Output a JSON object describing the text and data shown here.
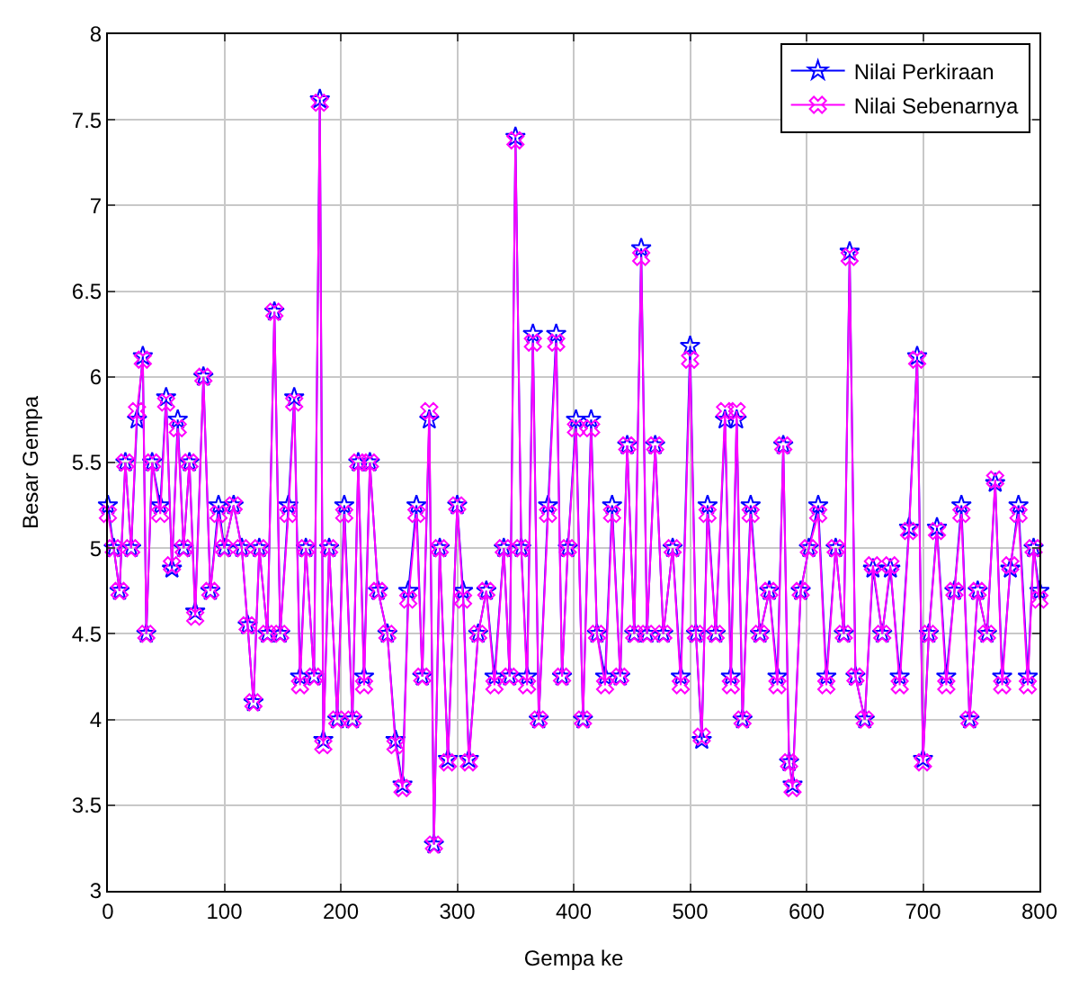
{
  "chart_data": {
    "type": "line",
    "xlabel": "Gempa ke",
    "ylabel": "Besar Gempa",
    "xlim": [
      0,
      800
    ],
    "xticks": [
      0,
      100,
      200,
      300,
      400,
      500,
      600,
      700,
      800
    ],
    "ylim": [
      3,
      8
    ],
    "yticks": [
      3,
      3.5,
      4,
      4.5,
      5,
      5.5,
      6,
      6.5,
      7,
      7.5,
      8
    ],
    "grid": true,
    "legend": "top right",
    "line_style": "solid",
    "x": [
      0,
      5,
      10,
      15,
      20,
      25,
      30,
      33,
      38,
      45,
      50,
      55,
      60,
      65,
      70,
      75,
      82,
      88,
      95,
      100,
      108,
      115,
      120,
      125,
      130,
      137,
      143,
      148,
      155,
      160,
      165,
      170,
      177,
      182,
      185,
      190,
      197,
      203,
      210,
      215,
      220,
      225,
      232,
      240,
      247,
      253,
      258,
      265,
      270,
      276,
      280,
      285,
      292,
      300,
      305,
      310,
      318,
      325,
      332,
      340,
      345,
      350,
      355,
      360,
      365,
      370,
      378,
      385,
      390,
      395,
      402,
      408,
      415,
      420,
      427,
      433,
      440,
      446,
      452,
      458,
      463,
      470,
      477,
      485,
      492,
      500,
      505,
      510,
      515,
      522,
      530,
      535,
      540,
      545,
      552,
      560,
      568,
      575,
      580,
      585,
      588,
      595,
      602,
      610,
      617,
      625,
      632,
      637,
      642,
      650,
      657,
      665,
      672,
      680,
      688,
      695,
      700,
      705,
      712,
      720,
      727,
      733,
      740,
      747,
      755,
      762,
      768,
      775,
      782,
      790,
      795,
      800
    ],
    "series": [
      {
        "name": "Nilai Perkiraan",
        "color": "#0000ff",
        "marker": "star",
        "values": [
          5.25,
          5.0,
          4.75,
          5.5,
          5.0,
          5.75,
          6.12,
          4.5,
          5.5,
          5.25,
          5.88,
          4.88,
          5.75,
          5.0,
          5.5,
          4.63,
          6.0,
          4.75,
          5.25,
          5.0,
          5.25,
          5.0,
          4.55,
          4.1,
          5.0,
          4.5,
          6.38,
          4.5,
          5.25,
          5.88,
          4.25,
          5.0,
          4.25,
          7.62,
          3.88,
          5.0,
          4.0,
          5.25,
          4.0,
          5.5,
          4.25,
          5.5,
          4.75,
          4.5,
          3.88,
          3.62,
          4.75,
          5.25,
          4.25,
          5.75,
          3.27,
          5.0,
          3.77,
          5.25,
          4.75,
          3.77,
          4.5,
          4.75,
          4.25,
          5.0,
          4.25,
          7.4,
          5.0,
          4.25,
          6.25,
          4.0,
          5.25,
          6.25,
          4.25,
          5.0,
          5.75,
          4.0,
          5.75,
          4.5,
          4.25,
          5.25,
          4.25,
          5.6,
          4.5,
          6.75,
          4.5,
          5.6,
          4.5,
          5.0,
          4.25,
          6.18,
          4.5,
          3.88,
          5.25,
          4.5,
          5.75,
          4.25,
          5.75,
          4.0,
          5.25,
          4.5,
          4.75,
          4.25,
          5.6,
          3.75,
          3.62,
          4.75,
          5.0,
          5.25,
          4.25,
          5.0,
          4.5,
          6.73,
          4.25,
          4.0,
          4.88,
          4.5,
          4.88,
          4.25,
          5.12,
          6.12,
          3.77,
          4.5,
          5.12,
          4.25,
          4.75,
          5.25,
          4.0,
          4.75,
          4.5,
          5.38,
          4.25,
          4.88,
          5.25,
          4.25,
          5.0,
          4.75
        ]
      },
      {
        "name": "Nilai Sebenarnya",
        "color": "#ff00ff",
        "marker": "cross",
        "values": [
          5.2,
          5.0,
          4.75,
          5.5,
          5.0,
          5.8,
          6.1,
          4.5,
          5.5,
          5.2,
          5.85,
          4.9,
          5.7,
          5.0,
          5.5,
          4.6,
          6.0,
          4.75,
          5.2,
          5.0,
          5.25,
          5.0,
          4.55,
          4.1,
          5.0,
          4.5,
          6.38,
          4.5,
          5.2,
          5.85,
          4.2,
          5.0,
          4.25,
          7.6,
          3.85,
          5.0,
          4.0,
          5.2,
          4.0,
          5.5,
          4.2,
          5.5,
          4.75,
          4.5,
          3.85,
          3.6,
          4.7,
          5.2,
          4.25,
          5.8,
          3.27,
          5.0,
          3.75,
          5.25,
          4.7,
          3.75,
          4.5,
          4.75,
          4.2,
          5.0,
          4.25,
          7.38,
          5.0,
          4.2,
          6.2,
          4.0,
          5.2,
          6.2,
          4.25,
          5.0,
          5.7,
          4.0,
          5.7,
          4.5,
          4.2,
          5.2,
          4.25,
          5.6,
          4.5,
          6.7,
          4.5,
          5.6,
          4.5,
          5.0,
          4.2,
          6.1,
          4.5,
          3.9,
          5.2,
          4.5,
          5.8,
          4.2,
          5.8,
          4.0,
          5.2,
          4.5,
          4.75,
          4.2,
          5.6,
          3.75,
          3.6,
          4.75,
          5.0,
          5.2,
          4.2,
          5.0,
          4.5,
          6.7,
          4.25,
          4.0,
          4.9,
          4.5,
          4.9,
          4.2,
          5.1,
          6.1,
          3.75,
          4.5,
          5.1,
          4.2,
          4.75,
          5.2,
          4.0,
          4.75,
          4.5,
          5.4,
          4.2,
          4.9,
          5.2,
          4.2,
          5.0,
          4.7
        ]
      }
    ]
  }
}
